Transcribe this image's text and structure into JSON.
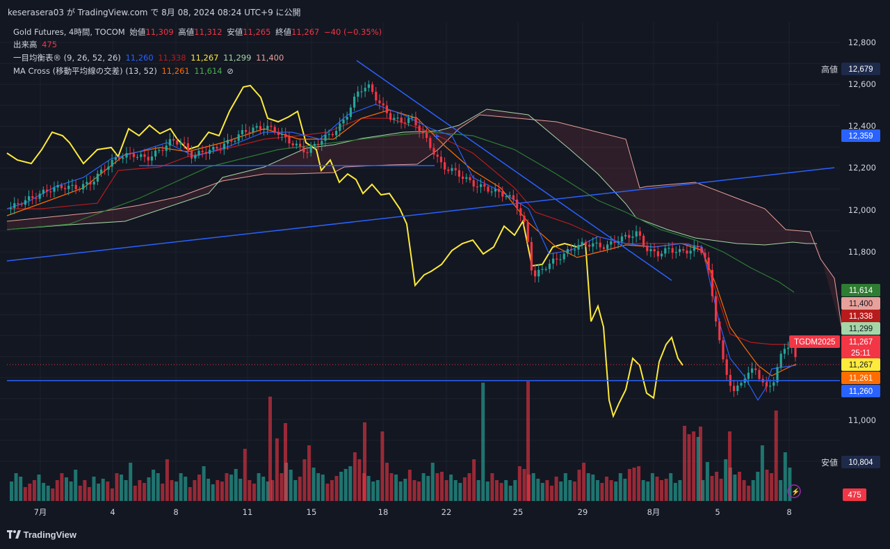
{
  "header": {
    "published": "keserasera03 が TradingView.com で 8月 08, 2024 08:24 UTC+9 に公開"
  },
  "legend": {
    "symbol": "Gold Futures, 4時間, TOCOM",
    "open_label": "始値",
    "open": "11,309",
    "high_label": "高値",
    "high": "11,312",
    "low_label": "安値",
    "low": "11,265",
    "close_label": "終値",
    "close": "11,267",
    "change": "−40 (−0.35%)",
    "volume_label": "出来高",
    "volume": "475",
    "ichimoku_label": "一目均衡表® (9, 26, 52, 26)",
    "ichimoku_values": [
      "11,260",
      "11,338",
      "11,267",
      "11,299",
      "11,400"
    ],
    "ma_label": "MA Cross (移動平均線の交差) (13, 52)",
    "ma_values": [
      "11,261",
      "11,614"
    ],
    "ma_icon": "⊘"
  },
  "price_axis": {
    "ticks": [
      "12,800",
      "12,600",
      "12,400",
      "12,200",
      "12,000",
      "11,800",
      "11,000"
    ]
  },
  "price_badges": [
    {
      "label": "高値",
      "value": "12,679",
      "color": "#1e2a4a"
    },
    {
      "label": "",
      "value": "12,359",
      "color": "#2962ff"
    },
    {
      "label": "",
      "value": "11,614",
      "color": "#2e7d32"
    },
    {
      "label": "",
      "value": "11,400",
      "color": "#e8a09a"
    },
    {
      "label": "",
      "value": "11,338",
      "color": "#b71c1c"
    },
    {
      "label": "",
      "value": "11,299",
      "color": "#a5d6a7"
    },
    {
      "label": "TGDM2025",
      "value": "11,267",
      "color": "#f23645"
    },
    {
      "label": "",
      "value": "25:11",
      "color": "#f23645"
    },
    {
      "label": "",
      "value": "11,267",
      "color": "#ffeb3b"
    },
    {
      "label": "",
      "value": "11,261",
      "color": "#ff6d00"
    },
    {
      "label": "",
      "value": "11,260",
      "color": "#2962ff"
    },
    {
      "label": "安値",
      "value": "10,804",
      "color": "#1e2a4a"
    },
    {
      "label": "",
      "value": "475",
      "color": "#f23645"
    }
  ],
  "time_axis": {
    "ticks": [
      "7月",
      "4",
      "8",
      "11",
      "15",
      "18",
      "22",
      "25",
      "29",
      "8月",
      "5",
      "8"
    ]
  },
  "brand": "TradingView",
  "chart_data": {
    "type": "candlestick",
    "symbol": "Gold Futures, 4時間, TOCOM",
    "y_range": [
      10700,
      12900
    ],
    "high_mark": 12679,
    "low_mark": 10804,
    "last_price": 11267,
    "annotations": [
      "TGDM2025"
    ],
    "colors": {
      "up": "#26a69a",
      "down": "#f23645",
      "tenkan": "#2962ff",
      "kijun": "#b71c1c",
      "chikou": "#ffeb3b",
      "span_a": "#a5d6a7",
      "span_b": "#e8a09a",
      "ma_fast": "#ff6d00",
      "ma_slow": "#2e7d32",
      "trendline": "#2962ff"
    }
  }
}
